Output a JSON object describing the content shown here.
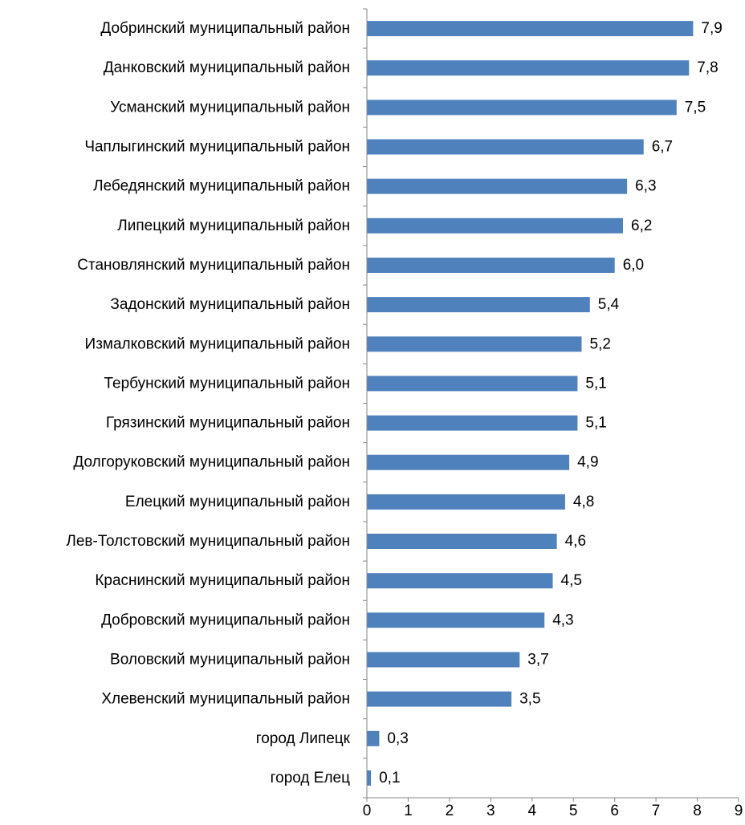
{
  "chart_data": {
    "type": "bar",
    "orientation": "horizontal",
    "categories": [
      "Добринский муниципальный район",
      "Данковский муниципальный район",
      "Усманский муниципальный район",
      "Чаплыгинский муниципальный район",
      "Лебедянский муниципальный район",
      "Липецкий муниципальный район",
      "Становлянский муниципальный район",
      "Задонский муниципальный район",
      "Измалковский муниципальный район",
      "Тербунский муниципальный район",
      "Грязинский муниципальный район",
      "Долгоруковский муниципальный район",
      "Елецкий муниципальный район",
      "Лев-Толстовский муниципальный район",
      "Краснинский муниципальный район",
      "Добровский муниципальный район",
      "Воловский муниципальный район",
      "Хлевенский муниципальный район",
      "город Липецк",
      "город Елец"
    ],
    "values": [
      7.9,
      7.8,
      7.5,
      6.7,
      6.3,
      6.2,
      6.0,
      5.4,
      5.2,
      5.1,
      5.1,
      4.9,
      4.8,
      4.6,
      4.5,
      4.3,
      3.7,
      3.5,
      0.3,
      0.1
    ],
    "value_labels": [
      "7,9",
      "7,8",
      "7,5",
      "6,7",
      "6,3",
      "6,2",
      "6,0",
      "5,4",
      "5,2",
      "5,1",
      "5,1",
      "4,9",
      "4,8",
      "4,6",
      "4,5",
      "4,3",
      "3,7",
      "3,5",
      "0,3",
      "0,1"
    ],
    "xlim": [
      0,
      9
    ],
    "xticks": [
      "0",
      "1",
      "2",
      "3",
      "4",
      "5",
      "6",
      "7",
      "8",
      "9"
    ],
    "title": "",
    "xlabel": "",
    "ylabel": "",
    "grid": false,
    "legend": "none",
    "bar_color": "#4F81BD",
    "axis_color": "#868686"
  }
}
